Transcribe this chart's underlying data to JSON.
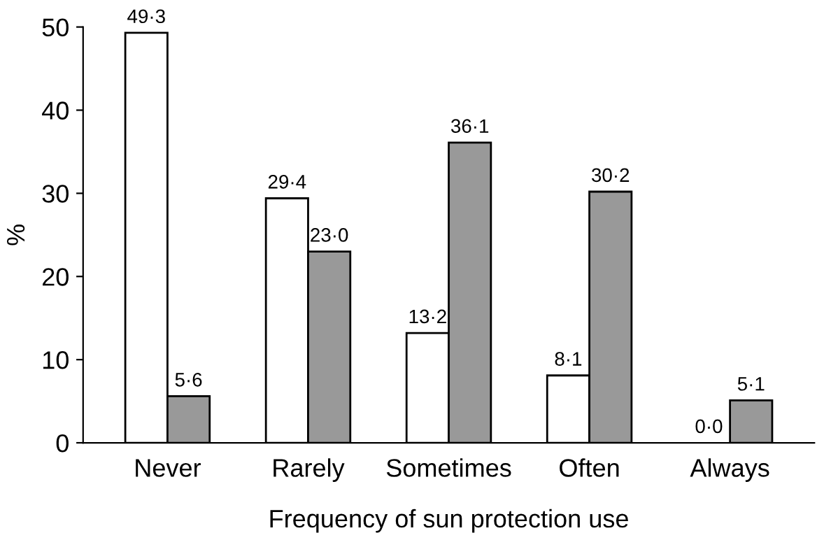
{
  "chart_data": {
    "type": "bar",
    "xlabel": "Frequency of sun protection use",
    "ylabel": "%",
    "categories": [
      "Never",
      "Rarely",
      "Sometimes",
      "Often",
      "Always"
    ],
    "series": [
      {
        "color": "#ffffff",
        "values": [
          49.3,
          29.4,
          13.2,
          8.1,
          0.0
        ],
        "value_labels": [
          "49·3",
          "29·4",
          "13·2",
          "8·1",
          "0·0"
        ]
      },
      {
        "color": "#999999",
        "values": [
          5.6,
          23.0,
          36.1,
          30.2,
          5.1
        ],
        "value_labels": [
          "5·6",
          "23·0",
          "36·1",
          "30·2",
          "5·1"
        ]
      }
    ],
    "ylim": [
      0,
      50
    ],
    "yticks": [
      0,
      10,
      20,
      30,
      40,
      50
    ],
    "grid": false,
    "legend": false
  }
}
